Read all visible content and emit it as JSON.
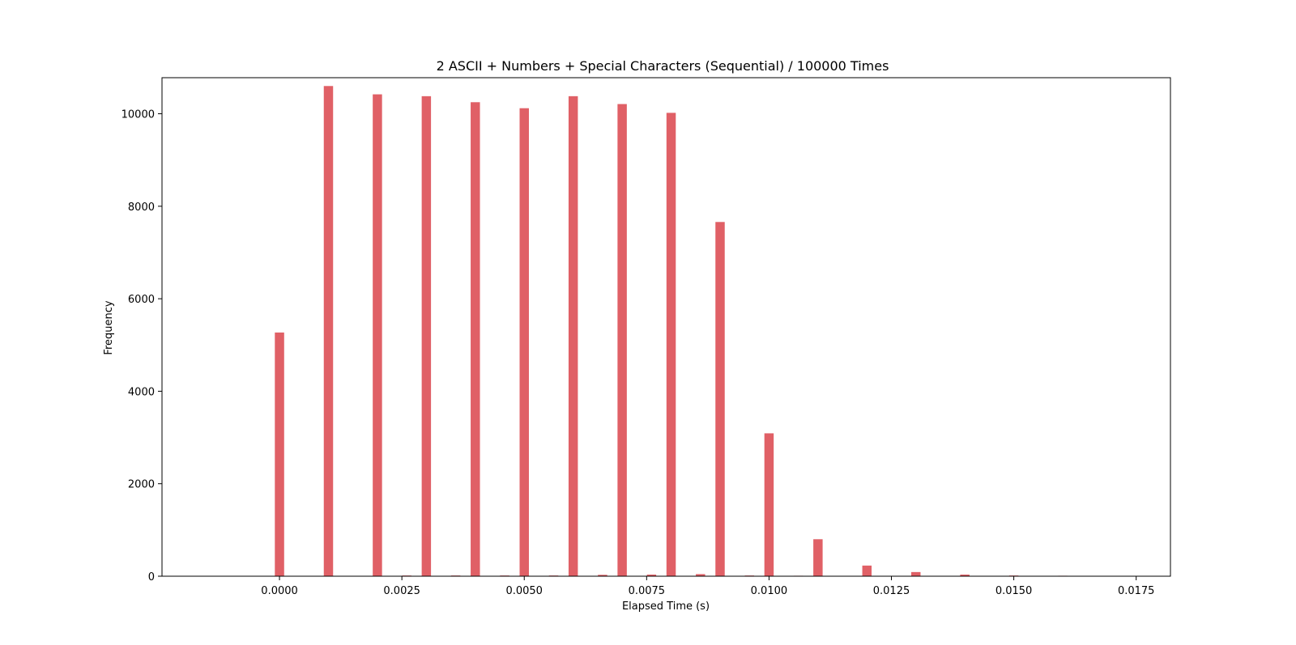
{
  "chart_data": {
    "type": "bar",
    "title": "2 ASCII + Numbers + Special Characters (Sequential) / 100000 Times",
    "xlabel": "Elapsed Time (s)",
    "ylabel": "Frequency",
    "xlim": [
      -0.0024,
      0.0182
    ],
    "ylim": [
      0,
      10780
    ],
    "xticks": [
      0.0,
      0.0025,
      0.005,
      0.0075,
      0.01,
      0.0125,
      0.015,
      0.0175
    ],
    "xtick_labels": [
      "0.0000",
      "0.0025",
      "0.0050",
      "0.0075",
      "0.0100",
      "0.0125",
      "0.0150",
      "0.0175"
    ],
    "yticks": [
      0,
      2000,
      4000,
      6000,
      8000,
      10000
    ],
    "ytick_labels": [
      "0",
      "2000",
      "4000",
      "6000",
      "8000",
      "10000"
    ],
    "bin_width": 0.00019,
    "grid": false,
    "color": "#e06066",
    "bins": [
      {
        "x": 0.0,
        "count": 5270
      },
      {
        "x": 0.001,
        "count": 10600
      },
      {
        "x": 0.002,
        "count": 10420
      },
      {
        "x": 0.0026,
        "count": 15
      },
      {
        "x": 0.003,
        "count": 10380
      },
      {
        "x": 0.0036,
        "count": 15
      },
      {
        "x": 0.004,
        "count": 10250
      },
      {
        "x": 0.0046,
        "count": 15
      },
      {
        "x": 0.005,
        "count": 10120
      },
      {
        "x": 0.0056,
        "count": 15
      },
      {
        "x": 0.006,
        "count": 10380
      },
      {
        "x": 0.0066,
        "count": 30
      },
      {
        "x": 0.007,
        "count": 10210
      },
      {
        "x": 0.0076,
        "count": 35
      },
      {
        "x": 0.008,
        "count": 10020
      },
      {
        "x": 0.0086,
        "count": 45
      },
      {
        "x": 0.009,
        "count": 7660
      },
      {
        "x": 0.0096,
        "count": 15
      },
      {
        "x": 0.01,
        "count": 3090
      },
      {
        "x": 0.0106,
        "count": 10
      },
      {
        "x": 0.011,
        "count": 800
      },
      {
        "x": 0.012,
        "count": 230
      },
      {
        "x": 0.013,
        "count": 90
      },
      {
        "x": 0.014,
        "count": 35
      },
      {
        "x": 0.015,
        "count": 15
      },
      {
        "x": 0.016,
        "count": 10
      }
    ]
  }
}
